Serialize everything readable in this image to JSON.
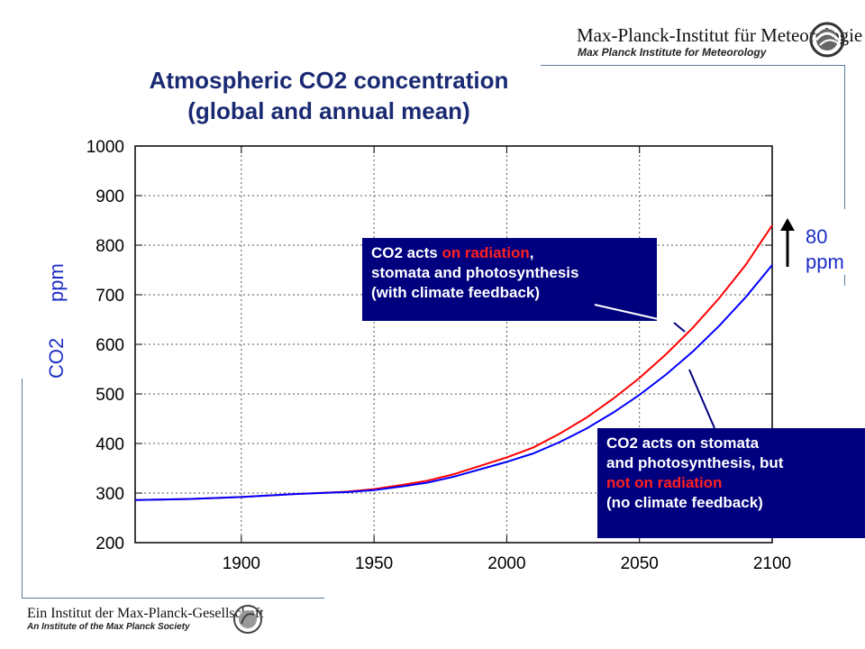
{
  "header": {
    "institute_de": "Max-Planck-Institut für Meteorologie",
    "institute_en": "Max Planck Institute for Meteorology",
    "logo_icon": "max-planck-meteorology-logo"
  },
  "title_line1": "Atmospheric CO2 concentration",
  "title_line2": "(global and annual mean)",
  "ylabel_part1": "CO2",
  "ylabel_part2": "ppm",
  "rise": {
    "value": "80",
    "unit": "ppm",
    "icon": "up-arrow-icon"
  },
  "annotation_top": {
    "prefix": "CO2 acts ",
    "highlight": "on radiation",
    "after_highlight": ",",
    "line2": "stomata and photosynthesis",
    "line3": "(with climate feedback)"
  },
  "annotation_bottom": {
    "line1": "CO2 acts on stomata",
    "line2": "and photosynthesis, but",
    "highlight": "not on radiation",
    "line4": "(no climate feedback)"
  },
  "footer": {
    "society_de": "Ein Institut der Max-Planck-Gesellschaft",
    "society_en": "An Institute of the Max Planck Society",
    "logo_icon": "minerva-logo"
  },
  "colors": {
    "with_feedback": "#ff0000",
    "no_feedback": "#0000ff",
    "title": "#1a2a72",
    "box_bg": "#00007f"
  },
  "chart_data": {
    "type": "line",
    "title": "Atmospheric CO2 concentration (global and annual mean)",
    "xlabel": "",
    "ylabel": "CO2 ppm",
    "xlim": [
      1860,
      2100
    ],
    "ylim": [
      200,
      1000
    ],
    "xticks": [
      1900,
      1950,
      2000,
      2050,
      2100
    ],
    "yticks": [
      200,
      300,
      400,
      500,
      600,
      700,
      800,
      900,
      1000
    ],
    "grid": true,
    "series": [
      {
        "color": "#ff0000",
        "x": [
          1860,
          1880,
          1900,
          1920,
          1940,
          1950,
          1960,
          1970,
          1980,
          1990,
          2000,
          2010,
          2020,
          2030,
          2040,
          2050,
          2060,
          2070,
          2080,
          2090,
          2100
        ],
        "values": [
          286,
          288,
          292,
          298,
          303,
          308,
          316,
          325,
          338,
          355,
          372,
          392,
          420,
          452,
          490,
          532,
          580,
          633,
          693,
          760,
          840
        ]
      },
      {
        "color": "#0000ff",
        "x": [
          1860,
          1880,
          1900,
          1920,
          1940,
          1950,
          1960,
          1970,
          1980,
          1990,
          2000,
          2010,
          2020,
          2030,
          2040,
          2050,
          2060,
          2070,
          2080,
          2090,
          2100
        ],
        "values": [
          286,
          288,
          292,
          298,
          302,
          306,
          313,
          321,
          333,
          348,
          363,
          380,
          403,
          430,
          462,
          498,
          539,
          585,
          637,
          695,
          760
        ]
      }
    ]
  }
}
